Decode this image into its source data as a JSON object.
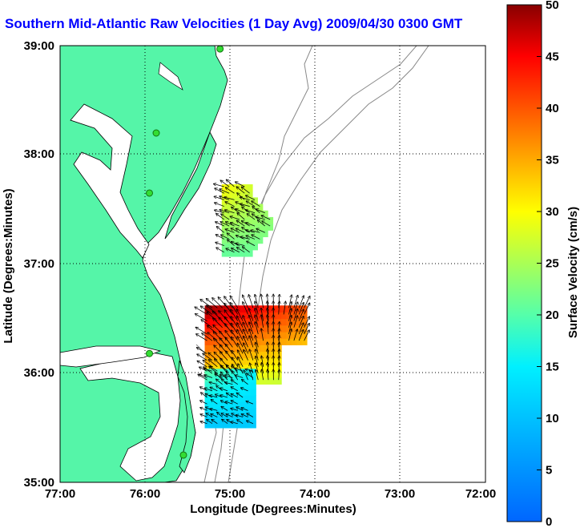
{
  "title": "Southern Mid-Atlantic Raw Velocities (1 Day Avg) 2009/04/30 0300 GMT",
  "axes": {
    "xlabel": "Longitude (Degrees:Minutes)",
    "ylabel": "Latitude (Degrees:Minutes)",
    "xticks": [
      "77:00",
      "76:00",
      "75:00",
      "74:00",
      "73:00",
      "72:00"
    ],
    "yticks": [
      "39:00",
      "38:00",
      "37:00",
      "36:00",
      "35:00"
    ]
  },
  "colorbar": {
    "label": "Surface Velocity (cm/s)",
    "ticks": [
      "50",
      "45",
      "40",
      "35",
      "30",
      "25",
      "20",
      "15",
      "10",
      "5",
      "0"
    ],
    "min": 0,
    "max": 50
  },
  "colors": {
    "land": "#55f5a8",
    "title": "#0000ff"
  },
  "map_extent": {
    "lon": [
      -77,
      -72
    ],
    "lat": [
      35,
      39
    ]
  },
  "stations": [
    {
      "lon": -75.12,
      "lat": 38.97
    },
    {
      "lon": -75.87,
      "lat": 38.2
    },
    {
      "lon": -75.95,
      "lat": 37.65
    },
    {
      "lon": -75.95,
      "lat": 36.18
    },
    {
      "lon": -75.55,
      "lat": 35.25
    }
  ],
  "velocity_regions": [
    {
      "lon": [
        -75.1,
        -74.5
      ],
      "lat": [
        37.07,
        37.7
      ],
      "speed_range_cm_s": [
        15,
        30
      ]
    },
    {
      "lon": [
        -75.3,
        -74.15
      ],
      "lat": [
        35.9,
        36.6
      ],
      "speed_range_cm_s": [
        20,
        50
      ]
    },
    {
      "lon": [
        -75.3,
        -74.75
      ],
      "lat": [
        35.5,
        36.0
      ],
      "speed_range_cm_s": [
        5,
        20
      ]
    }
  ]
}
